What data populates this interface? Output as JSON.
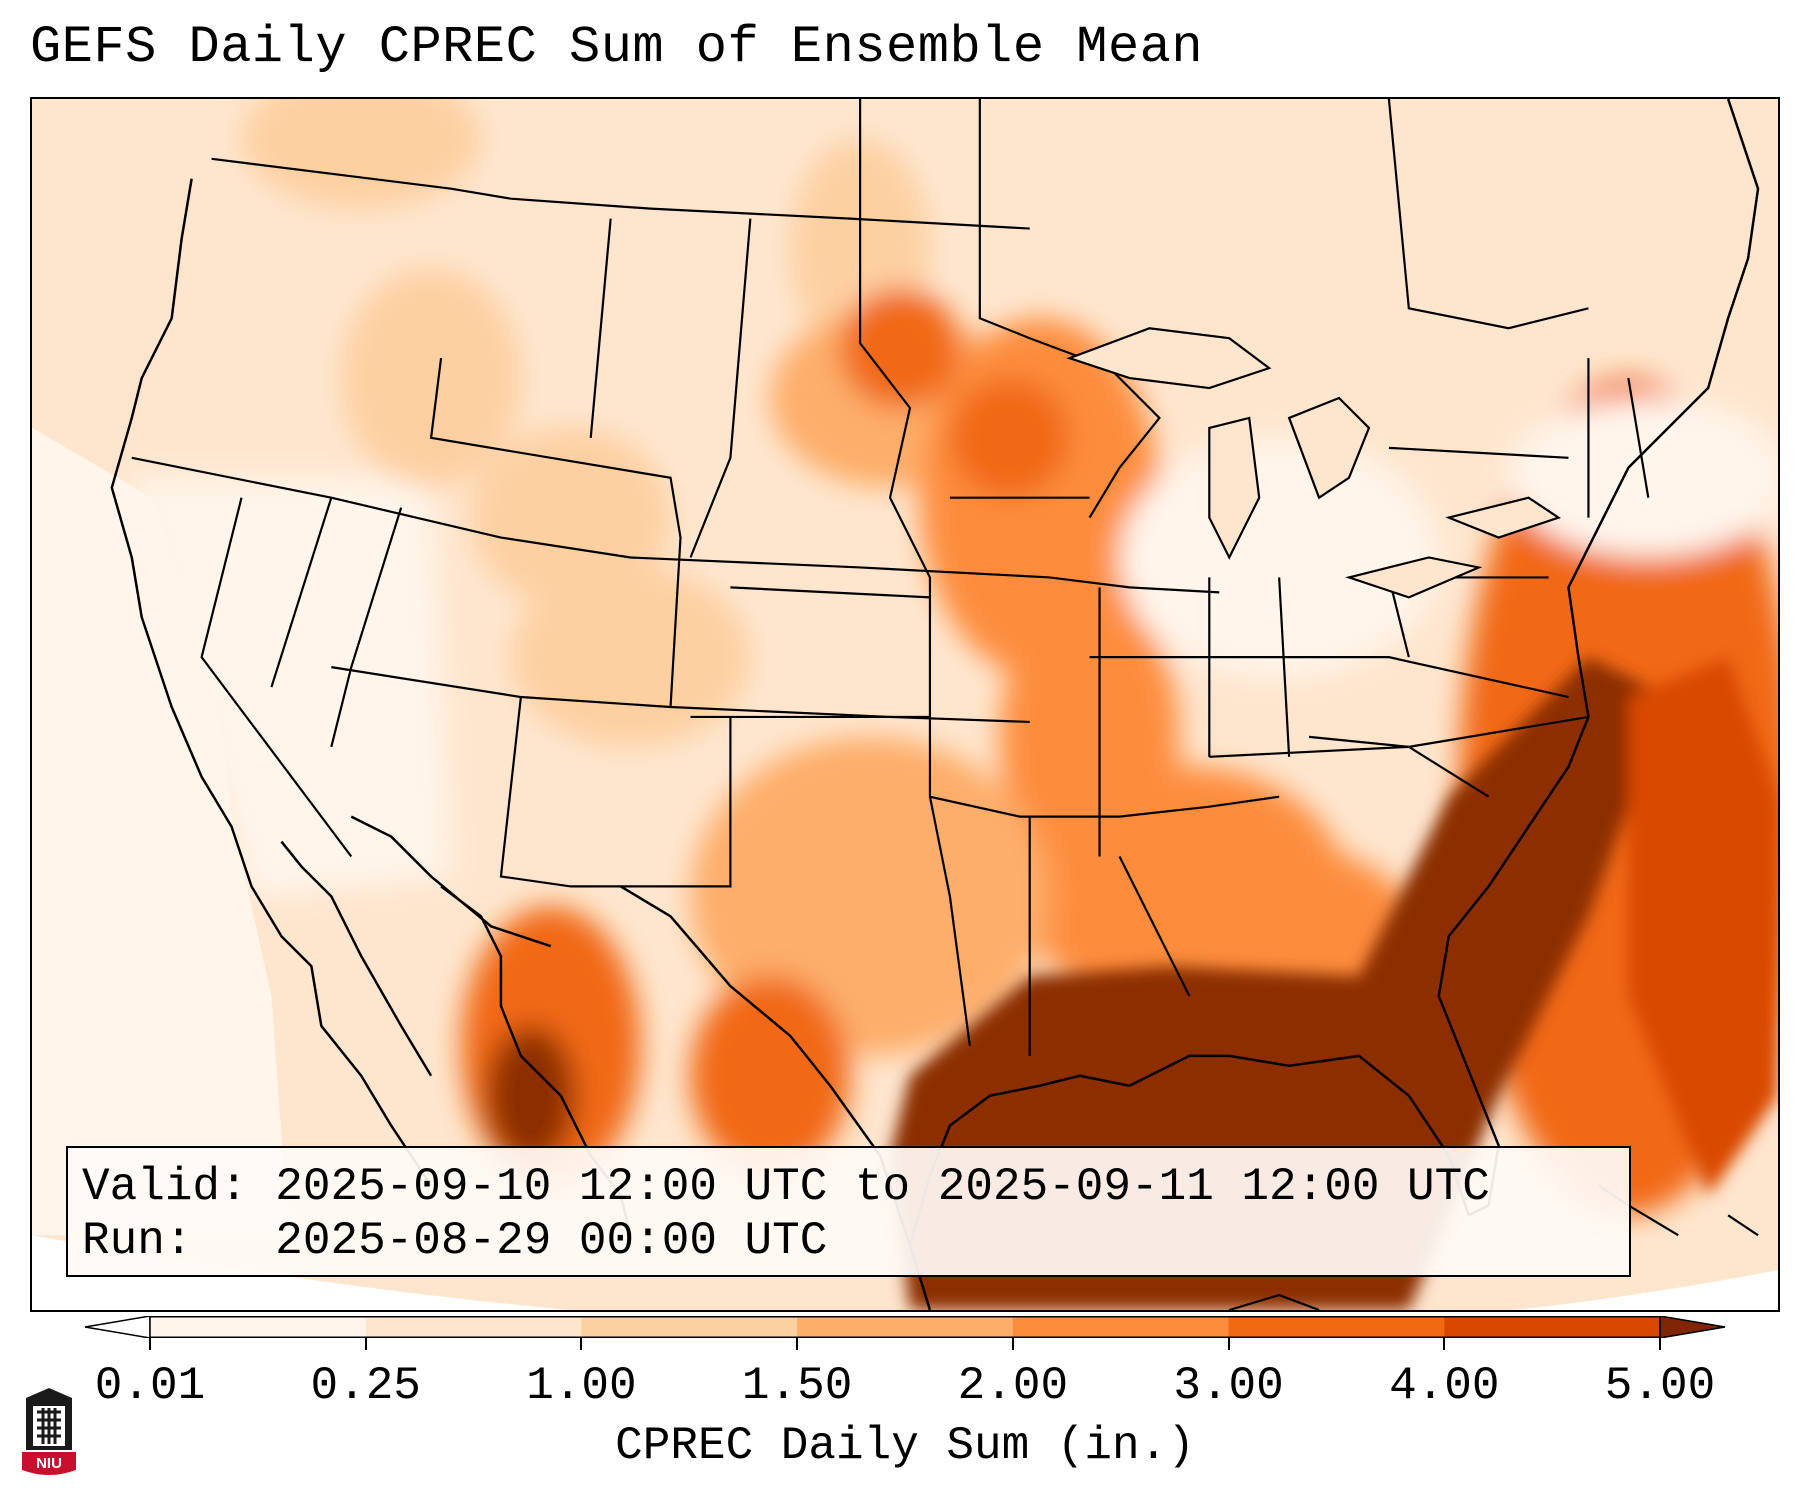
{
  "title": "GEFS Daily CPREC Sum of Ensemble Mean",
  "info": {
    "valid_label": "Valid:",
    "valid_text": "2025-09-10 12:00 UTC to 2025-09-11 12:00 UTC",
    "run_label": "Run:",
    "run_text": "2025-08-29 00:00 UTC"
  },
  "colorbar": {
    "label": "CPREC Daily Sum (in.)",
    "ticks": [
      "0.01",
      "0.25",
      "1.00",
      "1.50",
      "2.00",
      "3.00",
      "4.00",
      "5.00"
    ],
    "colors": [
      "#fff5eb",
      "#fee6ce",
      "#fdd0a2",
      "#fdae6b",
      "#fd8d3c",
      "#f16913",
      "#d94801",
      "#8c2d04"
    ],
    "under_color": "#ffffff",
    "over_color": "#7f2704"
  },
  "logo": {
    "text": "NIU"
  }
}
